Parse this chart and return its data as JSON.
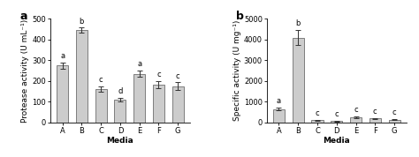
{
  "panel_a": {
    "categories": [
      "A",
      "B",
      "C",
      "D",
      "E",
      "F",
      "G"
    ],
    "values": [
      275,
      445,
      160,
      110,
      235,
      183,
      175
    ],
    "errors": [
      15,
      12,
      12,
      8,
      15,
      18,
      18
    ],
    "letters": [
      "a",
      "b",
      "c",
      "d",
      "a",
      "c",
      "c"
    ],
    "ylabel": "Protease activity (U mL⁻¹)",
    "xlabel": "Media",
    "ylim": [
      0,
      500
    ],
    "yticks": [
      0,
      100,
      200,
      300,
      400,
      500
    ],
    "panel_label": "a"
  },
  "panel_b": {
    "categories": [
      "A",
      "B",
      "C",
      "D",
      "E",
      "F",
      "G"
    ],
    "values": [
      650,
      4100,
      100,
      75,
      230,
      185,
      130
    ],
    "errors": [
      60,
      350,
      25,
      20,
      45,
      40,
      25
    ],
    "letters": [
      "a",
      "b",
      "c",
      "c",
      "c",
      "c",
      "c"
    ],
    "ylabel": "Specific activity (U mg⁻¹)",
    "xlabel": "Media",
    "ylim": [
      0,
      5000
    ],
    "yticks": [
      0,
      1000,
      2000,
      3000,
      4000,
      5000
    ],
    "panel_label": "b"
  },
  "bar_color": "#cccccc",
  "bar_edgecolor": "#555555",
  "background_color": "#ffffff",
  "bar_width": 0.6,
  "letter_fontsize": 6,
  "label_fontsize": 6.5,
  "tick_fontsize": 6,
  "panel_label_fontsize": 9
}
